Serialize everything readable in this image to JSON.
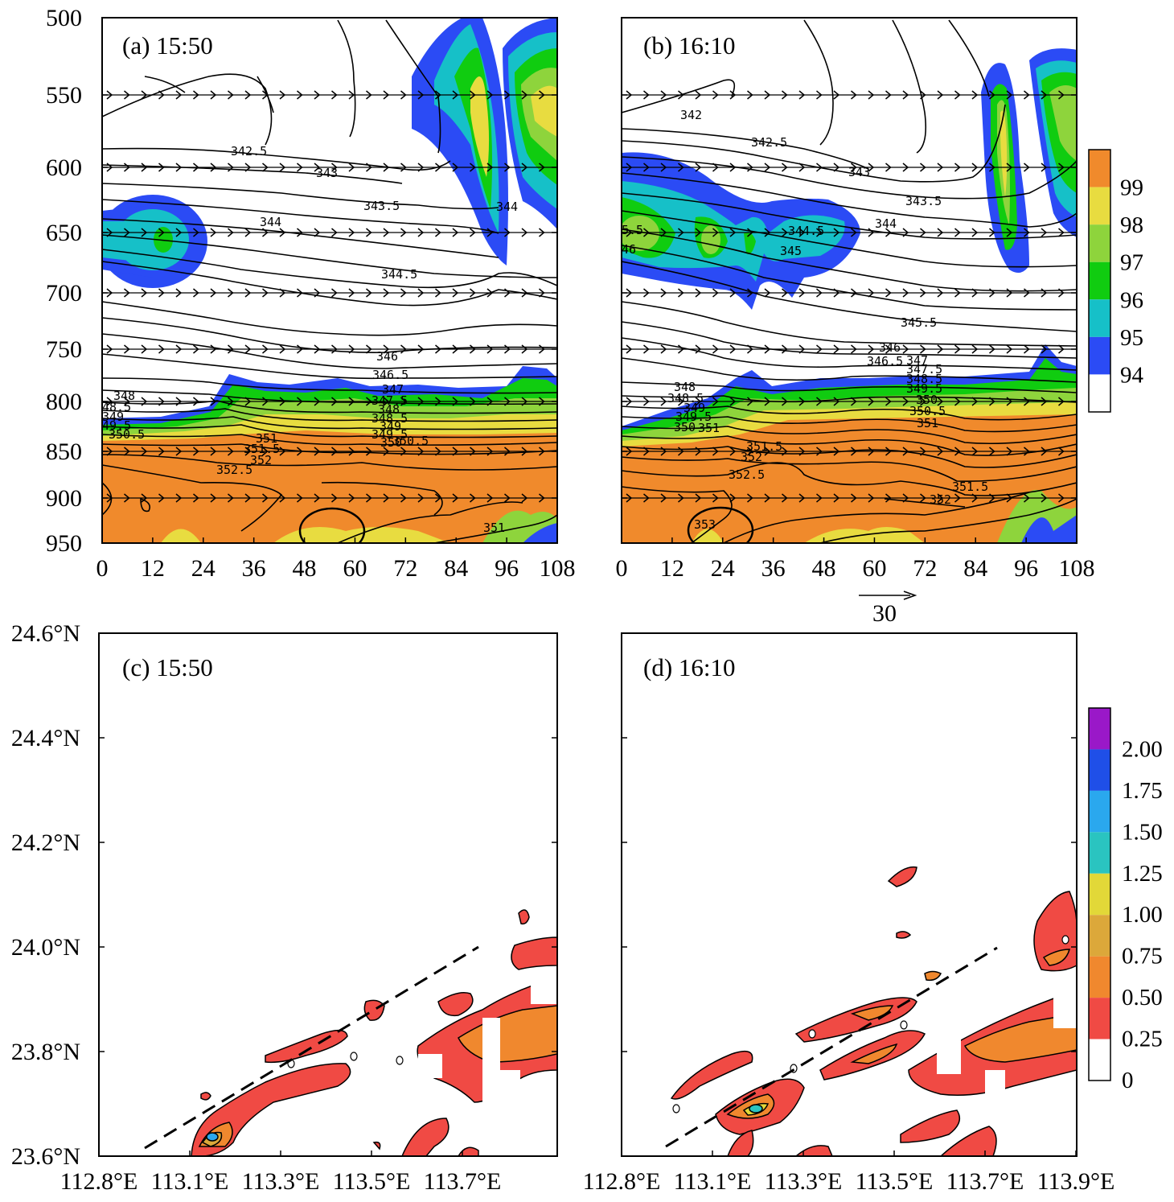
{
  "chart_data": [
    {
      "type": "heatmap",
      "panel_label": "(a) 15:50",
      "x_ticks": [
        "0",
        "12",
        "24",
        "36",
        "48",
        "60",
        "72",
        "84",
        "96",
        "108"
      ],
      "xlim": [
        0,
        108
      ],
      "y_ticks": [
        "500",
        "550",
        "600",
        "650",
        "700",
        "750",
        "800",
        "850",
        "900",
        "950"
      ],
      "ylim": [
        950,
        500
      ],
      "shading_levels": [
        94,
        95,
        96,
        97,
        98,
        99
      ],
      "shading_colors": [
        "#ffffff",
        "#2b4bf5",
        "#16c0c8",
        "#10cc10",
        "#8ed43c",
        "#e8dc40",
        "#f08a2c"
      ],
      "contour_labels": [
        "342.5",
        "343",
        "343.5",
        "344",
        "344",
        "344.5",
        "346",
        "346.5",
        "347",
        "347.5",
        "348",
        "348.5",
        "349",
        "349.5",
        "350",
        "350.5",
        "351",
        "351.5",
        "352",
        "352.5",
        "351",
        "348",
        "48.5",
        "349",
        "49.5",
        "350.5"
      ],
      "wind_levels": [
        550,
        600,
        650,
        700,
        750,
        800,
        850,
        900
      ],
      "annotations": [
        "ellipse near x=53, 950 hPa"
      ]
    },
    {
      "type": "heatmap",
      "panel_label": "(b) 16:10",
      "x_ticks": [
        "0",
        "12",
        "24",
        "36",
        "48",
        "60",
        "72",
        "84",
        "96",
        "108"
      ],
      "xlim": [
        0,
        108
      ],
      "y_ticks": [
        "500",
        "550",
        "600",
        "650",
        "700",
        "750",
        "800",
        "850",
        "900",
        "950"
      ],
      "ylim": [
        950,
        500
      ],
      "shading_levels": [
        94,
        95,
        96,
        97,
        98,
        99
      ],
      "contour_labels": [
        "342",
        "342.5",
        "343",
        "343.5",
        "344",
        "344.5",
        "345",
        "345.5",
        "346",
        "346.5",
        "347",
        "347.5",
        "348",
        "348.5",
        "349",
        "349.5",
        "350",
        "350.5",
        "351",
        "351.5",
        "352",
        "352.5",
        "353",
        "351.5",
        "352",
        "5.5",
        "46"
      ],
      "wind_levels": [
        550,
        600,
        650,
        700,
        750,
        800,
        850,
        900
      ],
      "reference_vector": "30",
      "colorbar_ticks": [
        "99",
        "98",
        "97",
        "96",
        "95",
        "94"
      ],
      "annotations": [
        "ellipse near x=23, 950 hPa"
      ]
    },
    {
      "type": "heatmap",
      "panel_label": "(c) 15:50",
      "x_ticks": [
        "112.8°E",
        "113.1°E",
        "113.3°E",
        "113.5°E",
        "113.7°E"
      ],
      "y_ticks": [
        "24.6°N",
        "24.4°N",
        "24.2°N",
        "24.0°N",
        "23.8°N",
        "23.6°N"
      ],
      "xlim": [
        112.8,
        113.9
      ],
      "ylim": [
        23.6,
        24.6
      ],
      "shading_levels": [
        0,
        0.25,
        0.5,
        0.75,
        1.0,
        1.25,
        1.5,
        1.75,
        2.0
      ],
      "dashed_line": "cross-section line from SW to NE"
    },
    {
      "type": "heatmap",
      "panel_label": "(d) 16:10",
      "x_ticks": [
        "112.8°E",
        "113.1°E",
        "113.3°E",
        "113.5°E",
        "113.7°E",
        "113.9°E"
      ],
      "y_ticks": [
        "24.6°N",
        "24.4°N",
        "24.2°N",
        "24.0°N",
        "23.8°N",
        "23.6°N"
      ],
      "xlim": [
        112.8,
        113.9
      ],
      "ylim": [
        23.6,
        24.6
      ],
      "shading_levels": [
        0,
        0.25,
        0.5,
        0.75,
        1.0,
        1.25,
        1.5,
        1.75,
        2.0
      ],
      "colorbar_ticks": [
        "2.00",
        "1.75",
        "1.50",
        "1.25",
        "1.00",
        "0.75",
        "0.50",
        "0.25",
        "0"
      ],
      "colorbar_colors": [
        "#9a18c8",
        "#1f4fe8",
        "#2aa8ee",
        "#2ac4c0",
        "#e2d838",
        "#dca83a",
        "#f0882e",
        "#f04a44",
        "#ffffff"
      ],
      "dashed_line": "cross-section line from SW to NE"
    }
  ]
}
